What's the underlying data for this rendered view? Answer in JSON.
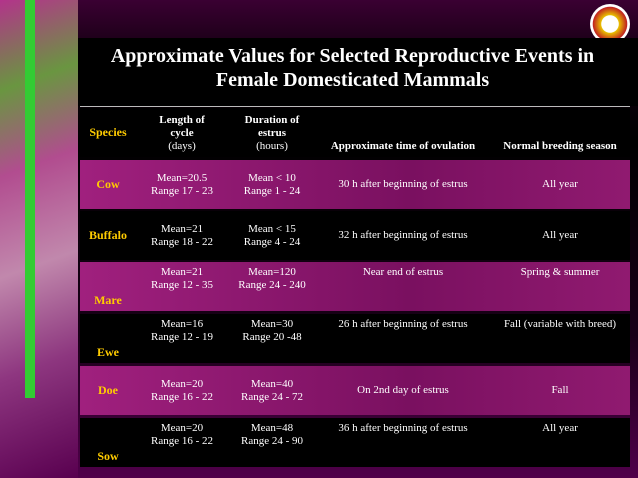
{
  "title": [
    "Approximate Values for Selected Reproductive Events in",
    "Female Domesticated Mammals"
  ],
  "header": {
    "species": [
      "Species"
    ],
    "length": [
      "Length of",
      "cycle",
      "(days)"
    ],
    "duration": [
      "Duration of",
      "estrus",
      "(hours)"
    ],
    "ovulation": [
      "Approximate time of ovulation"
    ],
    "season": [
      "Normal breeding season"
    ]
  },
  "rows": [
    {
      "species": "Cow",
      "length": [
        "Mean=20.5",
        "Range 17 - 23"
      ],
      "duration": [
        "Mean < 10",
        "Range 1 - 24"
      ],
      "ovulation": "30 h after beginning of estrus",
      "season": "All year"
    },
    {
      "species": "Buffalo",
      "length": [
        "Mean=21",
        "Range 18 - 22"
      ],
      "duration": [
        "Mean < 15",
        "Range 4 - 24"
      ],
      "ovulation": "32 h after beginning of estrus",
      "season": "All year"
    },
    {
      "species": "Mare",
      "length": [
        "Mean=21",
        "Range 12 - 35"
      ],
      "duration": [
        "Mean=120",
        "Range 24 - 240"
      ],
      "ovulation": "Near end of estrus",
      "season": "Spring & summer"
    },
    {
      "species": "Ewe",
      "length": [
        "Mean=16",
        "Range 12 - 19"
      ],
      "duration": [
        "Mean=30",
        "Range 20 -48"
      ],
      "ovulation": "26 h after beginning of estrus",
      "season": "Fall (variable with breed)"
    },
    {
      "species": "Doe",
      "length": [
        "Mean=20",
        "Range 16 - 22"
      ],
      "duration": [
        "Mean=40",
        "Range 24 - 72"
      ],
      "ovulation": "On 2nd day of estrus",
      "season": "Fall"
    },
    {
      "species": "Sow",
      "length": [
        "Mean=20",
        "Range 16 - 22"
      ],
      "duration": [
        "Mean=48",
        "Range 24 - 90"
      ],
      "ovulation": "36 h after beginning of estrus",
      "season": "All year"
    }
  ]
}
